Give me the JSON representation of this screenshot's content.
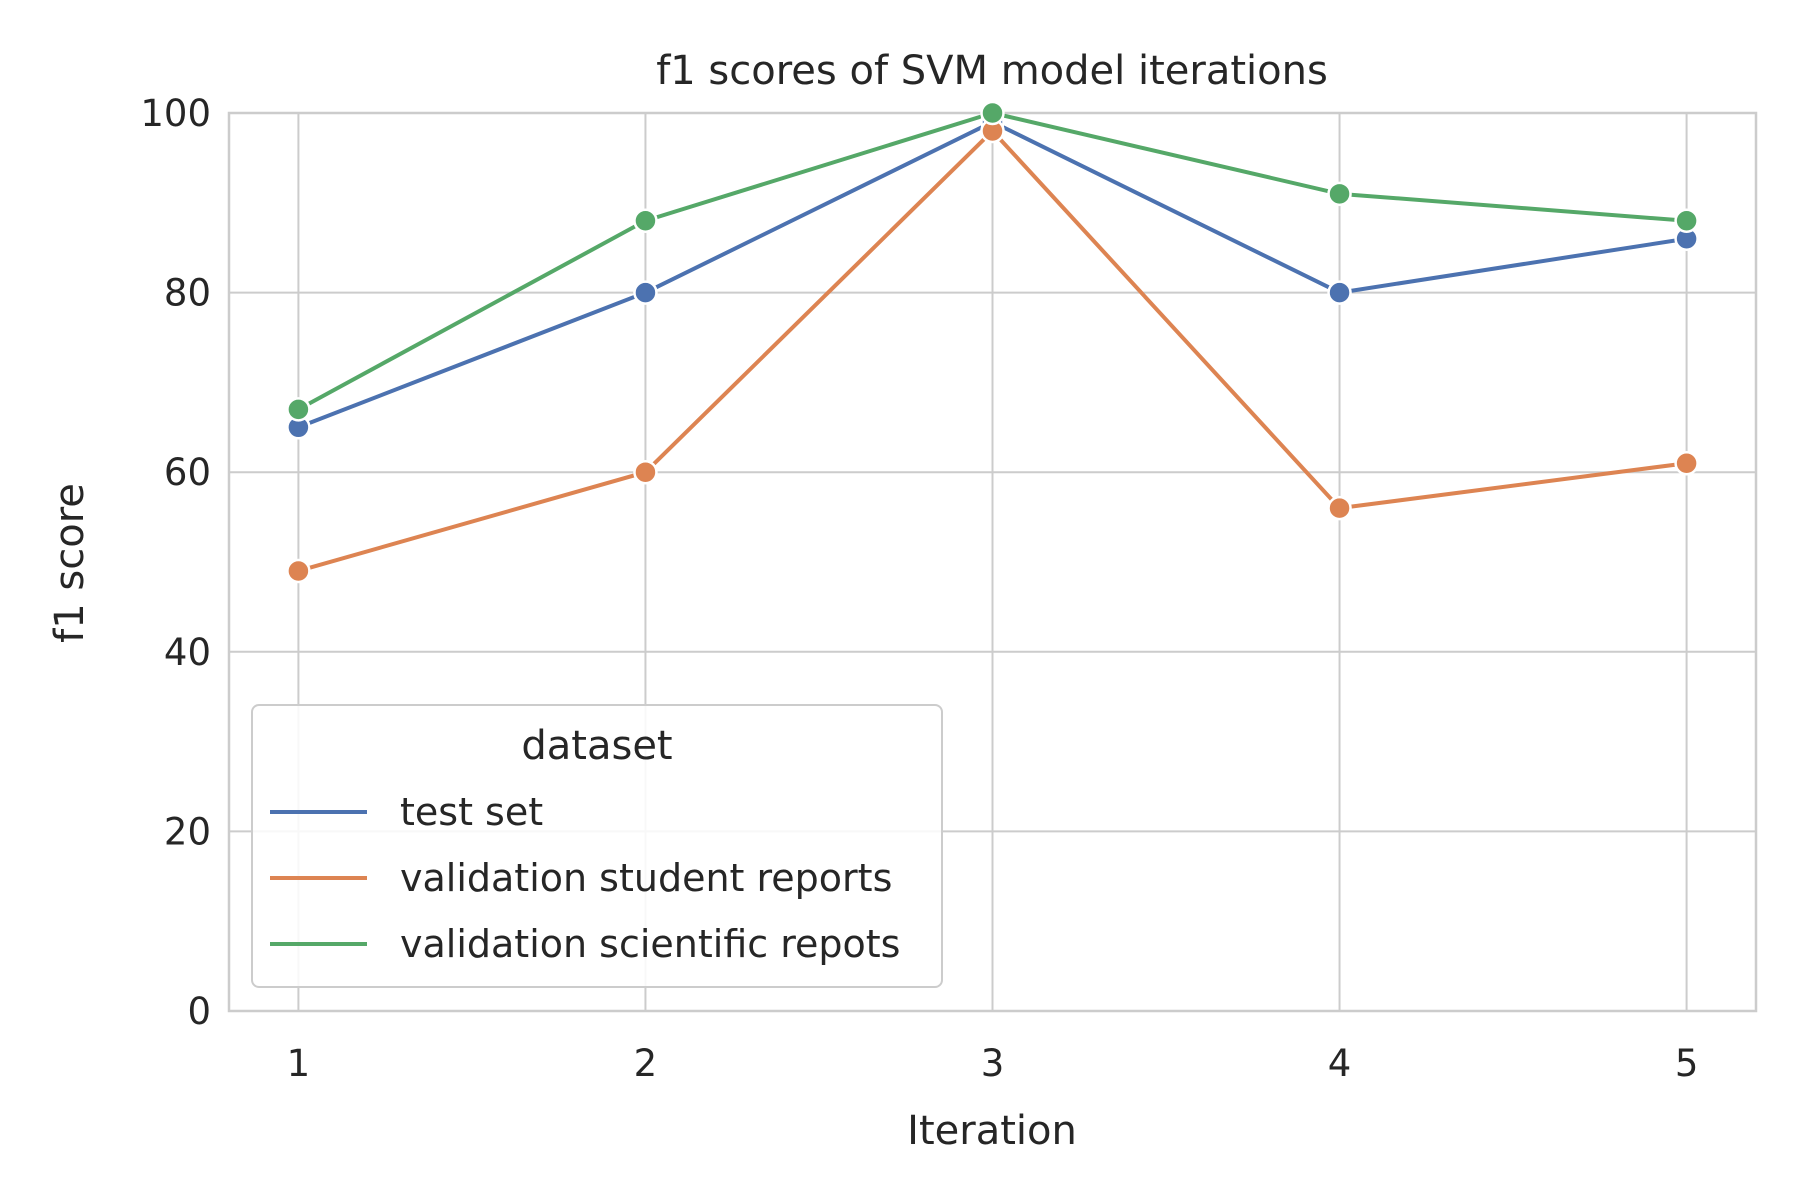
{
  "chart_data": {
    "type": "line",
    "title": "f1 scores of SVM model iterations",
    "xlabel": "Iteration",
    "ylabel": "f1 score",
    "x": [
      1,
      2,
      3,
      4,
      5
    ],
    "x_tick_labels": [
      "1",
      "2",
      "3",
      "4",
      "5"
    ],
    "xlim": [
      0.8,
      5.2
    ],
    "ylim": [
      0,
      100
    ],
    "y_ticks": [
      0,
      20,
      40,
      60,
      80,
      100
    ],
    "y_tick_labels": [
      "0",
      "20",
      "40",
      "60",
      "80",
      "100"
    ],
    "grid": true,
    "markers": true,
    "legend": {
      "title": "dataset",
      "placement": "lower-left"
    },
    "series": [
      {
        "name": "test set",
        "color": "#4c72b0",
        "values": [
          65,
          80,
          99,
          80,
          86
        ]
      },
      {
        "name": "validation student reports",
        "color": "#dd8452",
        "values": [
          49,
          60,
          98,
          56,
          61
        ]
      },
      {
        "name": "validation scientific repots",
        "color": "#55a868",
        "values": [
          67,
          88,
          100,
          91,
          88
        ]
      }
    ]
  }
}
